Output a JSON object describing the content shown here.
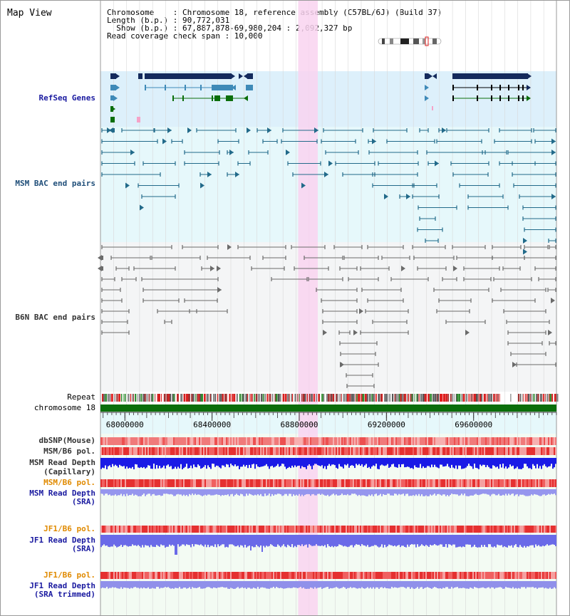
{
  "view": {
    "title": "Map View"
  },
  "info": {
    "chromosome": "Chromosome    : Chromosome 18, reference assembly (C57BL/6J) (Build 37)",
    "length": "Length (b.p.) : 90,772,031",
    "show": "  Show (b.p.) : 67,887,878-69,980,204 : 2,092,327 bp",
    "coverage": "Read coverage check span : 10,000"
  },
  "tracks": {
    "refseq": "RefSeq Genes",
    "msm_bac": "MSM BAC end pairs",
    "b6n_bac": "B6N BAC end pairs",
    "repeat": "Repeat",
    "chromosome": "chromosome 18",
    "dbsnp": "dbSNP(Mouse)",
    "msm_b6_pol_1": "MSM/B6 pol.",
    "msm_read_depth_cap_1": "MSM Read Depth",
    "msm_read_depth_cap_2": "(Capillary)",
    "msm_b6_pol_2": "MSM/B6 pol.",
    "msm_read_depth_sra_1": "MSM Read Depth",
    "msm_read_depth_sra_2": "(SRA)",
    "jf1_b6_pol_1": "JF1/B6 pol.",
    "jf1_read_depth_sra_1": "JF1 Read Depth",
    "jf1_read_depth_sra_2": "(SRA)",
    "jf1_b6_pol_2": "JF1/B6 pol.",
    "jf1_read_depth_trim_1": "JF1 Read Depth",
    "jf1_read_depth_trim_2": "(SRA trimmed)"
  },
  "axis": {
    "ticks": [
      "68000000",
      "68400000",
      "68800000",
      "69200000",
      "69600000"
    ],
    "tick_values": [
      68000000,
      68400000,
      68800000,
      69200000,
      69600000
    ],
    "range": [
      67887878,
      69980204
    ]
  },
  "highlight": {
    "start": 68795000,
    "end": 68885000
  },
  "colors": {
    "refseq_bg": "#ddf0fb",
    "msm_bg": "#e6f8fb",
    "b6n_bg": "#f4f5f6",
    "highlight": "#f9d4f0",
    "chromosome": "#0b6e0b",
    "gene_dark": "#142a5c",
    "gene_mid": "#3f8ab8",
    "gene_green": "#0b6e0b",
    "msm_pair": "#226a8a",
    "b6n_pair": "#6b6b6b",
    "depth_blue": "#1a1ae6",
    "depth_light": "#8a8aee",
    "pol_red": "#e02020",
    "orange": "#e08a00"
  }
}
